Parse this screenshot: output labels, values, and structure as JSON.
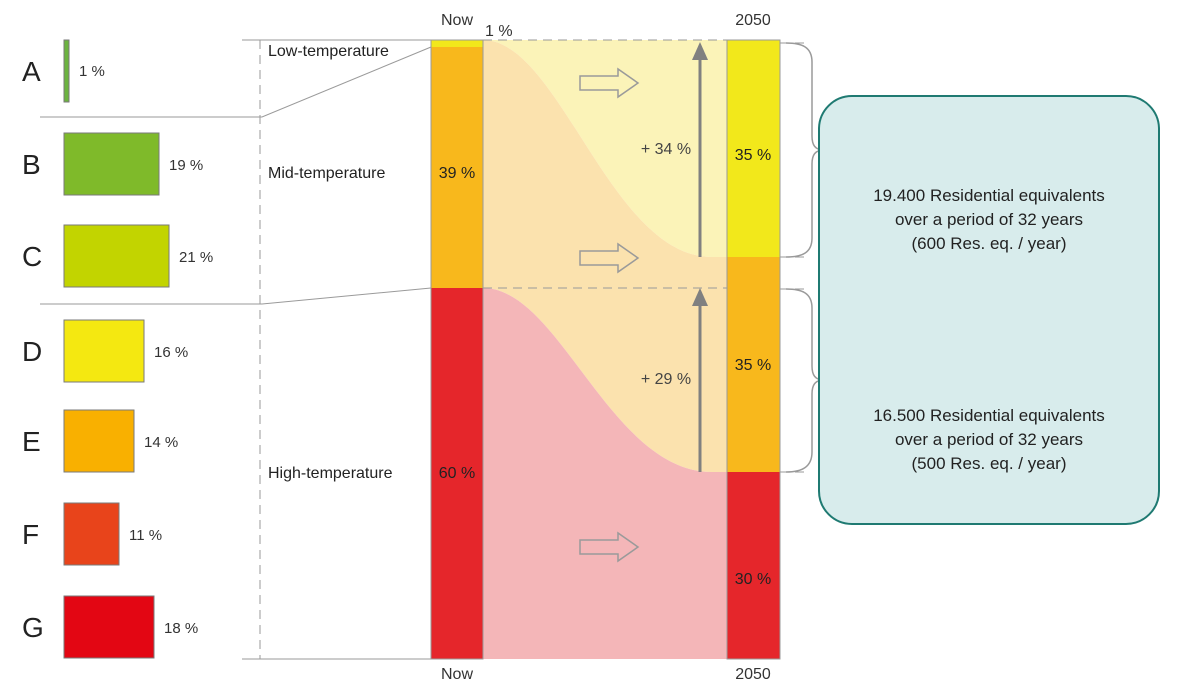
{
  "energy_labels": {
    "items": [
      {
        "letter": "A",
        "percent": "1 %",
        "value": 1,
        "color": "#6cb33f"
      },
      {
        "letter": "B",
        "percent": "19 %",
        "value": 19,
        "color": "#7fba2a"
      },
      {
        "letter": "C",
        "percent": "21 %",
        "value": 21,
        "color": "#c2d400"
      },
      {
        "letter": "D",
        "percent": "16 %",
        "value": 16,
        "color": "#f4e811"
      },
      {
        "letter": "E",
        "percent": "14 %",
        "value": 14,
        "color": "#f9b000"
      },
      {
        "letter": "F",
        "percent": "11 %",
        "value": 11,
        "color": "#e8441b"
      },
      {
        "letter": "G",
        "percent": "18 %",
        "value": 18,
        "color": "#e30613"
      }
    ]
  },
  "columns": {
    "now_top": "Now",
    "now_bottom": "Now",
    "future_top": "2050",
    "future_bottom": "2050"
  },
  "temperature_levels": {
    "low": {
      "label": "Low-temperature",
      "now": "1 %"
    },
    "mid": {
      "label": "Mid-temperature",
      "now": "39 %",
      "future": "35 %",
      "change": "+ 34 %"
    },
    "high": {
      "label": "High-temperature",
      "now": "60 %",
      "future": "30 %",
      "change": "+ 29 %"
    },
    "future_middle": "35 %"
  },
  "transitions": [
    {
      "from": [
        "C",
        "B"
      ],
      "to": [
        "A"
      ],
      "lines": [
        "19.400 Residential equivalents",
        "over a period of 32 years",
        "(600 Res. eq. / year)"
      ]
    },
    {
      "from": [
        "G",
        "F",
        "E",
        "D"
      ],
      "to": [
        "C",
        "B"
      ],
      "lines": [
        "16.500 Residential equivalents",
        "over a period of 32 years",
        "(500 Res. eq. / year)"
      ]
    }
  ],
  "colors": {
    "low_bar": "#f2e81b",
    "mid_bar": "#f8b81c",
    "high_bar": "#e5262b",
    "low_flow": "#fbf3b8",
    "mid_flow": "#fbe2ae",
    "high_flow": "#f4b6b8",
    "panel_bg": "#d8ecec",
    "panel_border": "#1f7a72",
    "arrow": "#808080"
  }
}
